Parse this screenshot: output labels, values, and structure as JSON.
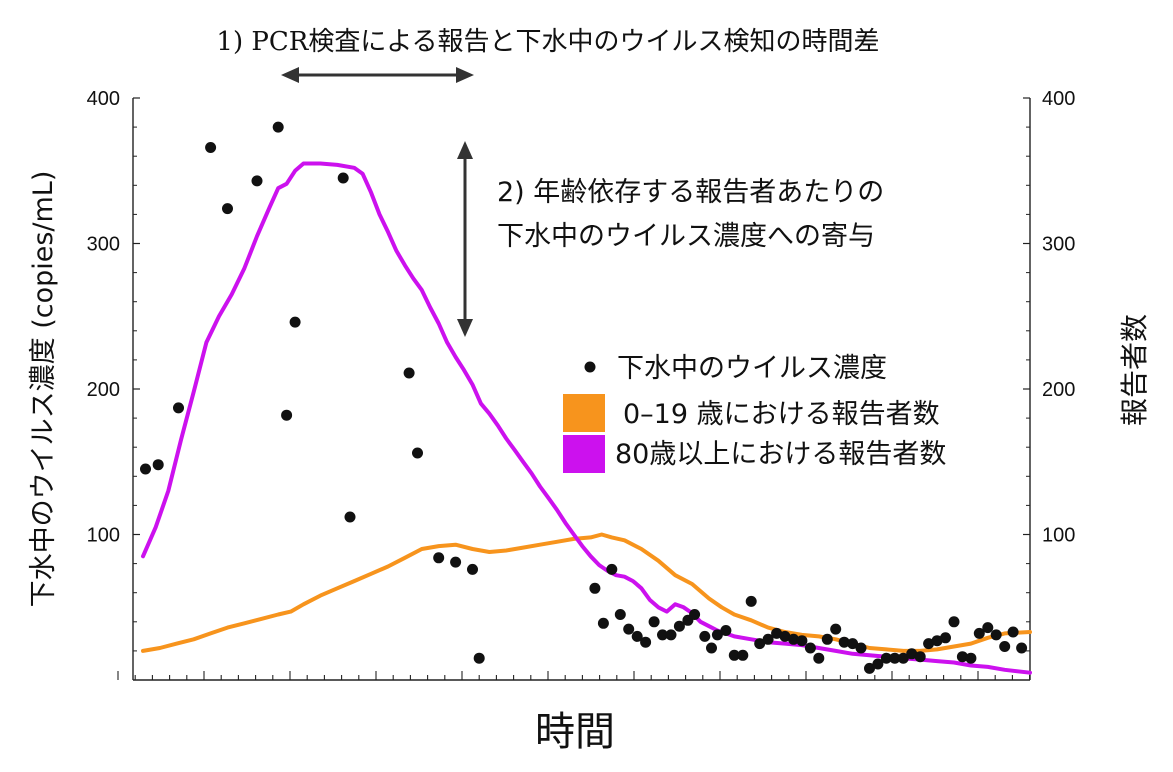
{
  "chart_data": {
    "type": "line",
    "title": "",
    "xlabel": "時間",
    "ylabel_left": "下水中のウイルス濃度 (copies/mL)",
    "ylabel_right": "報告者数",
    "ylim": [
      0,
      400
    ],
    "y_ticks": [
      "100",
      "200",
      "300",
      "400"
    ],
    "x_tick_labels": [],
    "grid": false,
    "legend_position": "center-right",
    "annotations": [
      {
        "text": "1) PCR検査による報告と下水中のウイルス検知の時間差",
        "arrow": "horizontal"
      },
      {
        "text_lines": [
          "2) 年齢依存する報告者あたりの",
          "下水中のウイルス濃度への寄与"
        ],
        "arrow": "vertical"
      }
    ],
    "legend": [
      {
        "label": "下水中のウイルス濃度",
        "marker": "dot",
        "color": "#111111"
      },
      {
        "label": "0–19 歳における報告者数",
        "marker": "square",
        "color": "#f7941d"
      },
      {
        "label": "80歳以上における報告者数",
        "marker": "square",
        "color": "#cc11ee"
      }
    ],
    "x_range": [
      0,
      105
    ],
    "points_wastewater": [
      [
        0.3,
        145
      ],
      [
        1.8,
        148
      ],
      [
        4.2,
        187
      ],
      [
        8,
        366
      ],
      [
        10,
        324
      ],
      [
        13.5,
        343
      ],
      [
        16,
        380
      ],
      [
        17,
        182
      ],
      [
        18,
        246
      ],
      [
        23.7,
        345
      ],
      [
        24.5,
        112
      ],
      [
        31.5,
        211
      ],
      [
        32.5,
        156
      ],
      [
        35,
        84
      ],
      [
        37,
        81
      ],
      [
        39,
        76
      ],
      [
        39.8,
        15
      ],
      [
        53.5,
        63
      ],
      [
        54.5,
        39
      ],
      [
        55.5,
        76
      ],
      [
        56.5,
        45
      ],
      [
        57.5,
        35
      ],
      [
        58.5,
        30
      ],
      [
        59.5,
        26
      ],
      [
        60.5,
        40
      ],
      [
        61.5,
        31
      ],
      [
        62.5,
        31
      ],
      [
        63.5,
        37
      ],
      [
        64.5,
        41
      ],
      [
        65.3,
        45
      ],
      [
        66.5,
        30
      ],
      [
        67.3,
        22
      ],
      [
        68,
        31
      ],
      [
        69,
        34
      ],
      [
        70,
        17
      ],
      [
        71,
        17
      ],
      [
        72,
        54
      ],
      [
        73,
        25
      ],
      [
        74,
        28
      ],
      [
        75,
        32
      ],
      [
        76,
        30
      ],
      [
        77,
        28
      ],
      [
        78,
        27
      ],
      [
        79,
        22
      ],
      [
        80,
        15
      ],
      [
        81,
        28
      ],
      [
        82,
        35
      ],
      [
        83,
        26
      ],
      [
        84,
        25
      ],
      [
        85,
        22
      ],
      [
        86,
        8
      ],
      [
        87,
        11
      ],
      [
        88,
        15
      ],
      [
        89,
        15
      ],
      [
        90,
        15
      ],
      [
        91,
        18
      ],
      [
        92,
        16
      ],
      [
        93,
        25
      ],
      [
        94,
        27
      ],
      [
        95,
        29
      ],
      [
        96,
        40
      ],
      [
        97,
        16
      ],
      [
        98,
        15
      ],
      [
        99,
        32
      ],
      [
        100,
        36
      ],
      [
        101,
        31
      ],
      [
        102,
        23
      ],
      [
        103,
        33
      ],
      [
        104,
        22
      ]
    ],
    "series": [
      {
        "name": "0–19 歳における報告者数",
        "color": "#f7941d",
        "points": [
          [
            0,
            20
          ],
          [
            2,
            22
          ],
          [
            4,
            25
          ],
          [
            6,
            28
          ],
          [
            8,
            32
          ],
          [
            10,
            36
          ],
          [
            12,
            39
          ],
          [
            14,
            42
          ],
          [
            16,
            45
          ],
          [
            17.5,
            47
          ],
          [
            19,
            52
          ],
          [
            21,
            58
          ],
          [
            23,
            63
          ],
          [
            25,
            68
          ],
          [
            27,
            73
          ],
          [
            29,
            78
          ],
          [
            31,
            84
          ],
          [
            33,
            90
          ],
          [
            35,
            92
          ],
          [
            37,
            93
          ],
          [
            39,
            90
          ],
          [
            41,
            88
          ],
          [
            43,
            89
          ],
          [
            45,
            91
          ],
          [
            47,
            93
          ],
          [
            49,
            95
          ],
          [
            51,
            97
          ],
          [
            53,
            98
          ],
          [
            54.3,
            100
          ],
          [
            55.5,
            98
          ],
          [
            57,
            96
          ],
          [
            59,
            90
          ],
          [
            61,
            82
          ],
          [
            63,
            72
          ],
          [
            65,
            66
          ],
          [
            67,
            56
          ],
          [
            68.5,
            50
          ],
          [
            70,
            45
          ],
          [
            72,
            41
          ],
          [
            74,
            36
          ],
          [
            76,
            33
          ],
          [
            78,
            31
          ],
          [
            80,
            30
          ],
          [
            82,
            28
          ],
          [
            84,
            25
          ],
          [
            86,
            22
          ],
          [
            88,
            21
          ],
          [
            90,
            20
          ],
          [
            92,
            20
          ],
          [
            94,
            21
          ],
          [
            96,
            23
          ],
          [
            98,
            25
          ],
          [
            100,
            29
          ],
          [
            102,
            32
          ],
          [
            105,
            33
          ]
        ]
      },
      {
        "name": "80歳以上における報告者数",
        "color": "#cc11ee",
        "points": [
          [
            0,
            85
          ],
          [
            1.5,
            105
          ],
          [
            3,
            130
          ],
          [
            4.5,
            165
          ],
          [
            6,
            198
          ],
          [
            7.5,
            232
          ],
          [
            9,
            250
          ],
          [
            10.5,
            265
          ],
          [
            12,
            283
          ],
          [
            13.5,
            305
          ],
          [
            15,
            325
          ],
          [
            16,
            338
          ],
          [
            17,
            341
          ],
          [
            18,
            350
          ],
          [
            19,
            355
          ],
          [
            21,
            355
          ],
          [
            23,
            354
          ],
          [
            25,
            352
          ],
          [
            26,
            348
          ],
          [
            27,
            335
          ],
          [
            28,
            320
          ],
          [
            29,
            308
          ],
          [
            30,
            295
          ],
          [
            31,
            285
          ],
          [
            32,
            276
          ],
          [
            33,
            268
          ],
          [
            34,
            256
          ],
          [
            35,
            245
          ],
          [
            36,
            232
          ],
          [
            37,
            222
          ],
          [
            38,
            213
          ],
          [
            39,
            203
          ],
          [
            40,
            190
          ],
          [
            41,
            183
          ],
          [
            42,
            175
          ],
          [
            43,
            166
          ],
          [
            44,
            158
          ],
          [
            45,
            150
          ],
          [
            46,
            142
          ],
          [
            47,
            133
          ],
          [
            48,
            125
          ],
          [
            49,
            117
          ],
          [
            50,
            108
          ],
          [
            51,
            100
          ],
          [
            52,
            92
          ],
          [
            53,
            85
          ],
          [
            54,
            79
          ],
          [
            55,
            75
          ],
          [
            56,
            72
          ],
          [
            57,
            71
          ],
          [
            58,
            68
          ],
          [
            59,
            63
          ],
          [
            60,
            55
          ],
          [
            61,
            50
          ],
          [
            62,
            47
          ],
          [
            63,
            52
          ],
          [
            64,
            50
          ],
          [
            65,
            46
          ],
          [
            66,
            40
          ],
          [
            67,
            37
          ],
          [
            68,
            34
          ],
          [
            69,
            32
          ],
          [
            70,
            30
          ],
          [
            72,
            28
          ],
          [
            74,
            26
          ],
          [
            76,
            25
          ],
          [
            78,
            24
          ],
          [
            80,
            22
          ],
          [
            82,
            20
          ],
          [
            84,
            18
          ],
          [
            86,
            17
          ],
          [
            88,
            16
          ],
          [
            90,
            15
          ],
          [
            92,
            14
          ],
          [
            94,
            13
          ],
          [
            96,
            12
          ],
          [
            98,
            10
          ],
          [
            100,
            9
          ],
          [
            102,
            7
          ],
          [
            105,
            5
          ]
        ]
      }
    ]
  }
}
